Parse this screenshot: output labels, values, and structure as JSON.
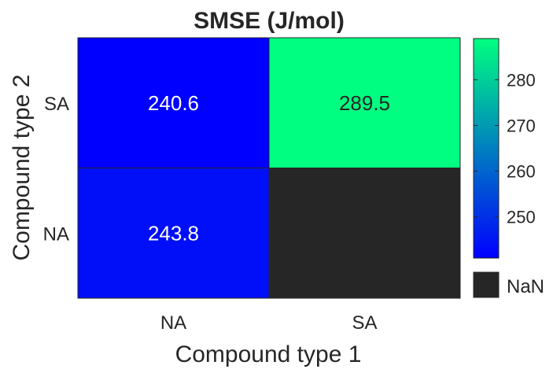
{
  "chart_data": {
    "type": "heatmap",
    "title": "SMSE (J/mol)",
    "xlabel": "Compound type 1",
    "ylabel": "Compound type 2",
    "x_categories": [
      "NA",
      "SA"
    ],
    "y_categories": [
      "SA",
      "NA"
    ],
    "values": [
      [
        240.6,
        289.5
      ],
      [
        243.8,
        null
      ]
    ],
    "cell_labels": [
      [
        "240.6",
        "289.5"
      ],
      [
        "243.8",
        ""
      ]
    ],
    "color_range": [
      241,
      289
    ],
    "colormap": {
      "low": "#0000ff",
      "high": "#00ff80"
    },
    "nan_color": "#262626",
    "nan_label": "NaN",
    "colorbar_ticks": [
      {
        "value": 250,
        "label": "250"
      },
      {
        "value": 260,
        "label": "260"
      },
      {
        "value": 270,
        "label": "270"
      },
      {
        "value": 280,
        "label": "280"
      }
    ]
  }
}
